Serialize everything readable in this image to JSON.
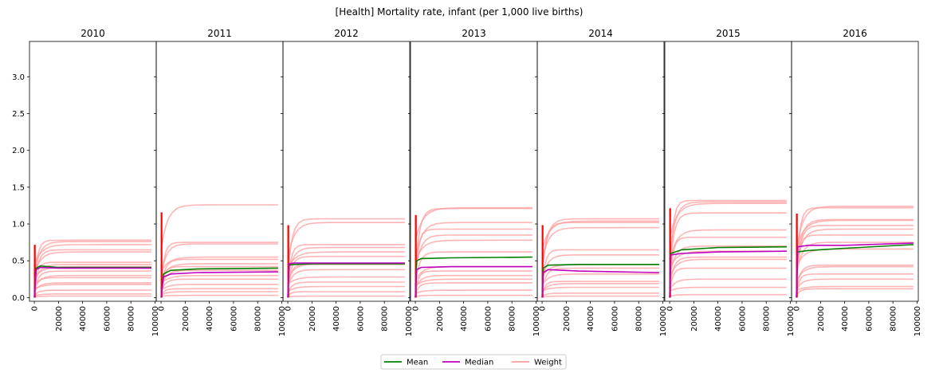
{
  "chart_data": {
    "type": "line",
    "title": "[Health] Mortality rate, infant (per 1,000 live births)",
    "xlabel": "",
    "ylabel": "",
    "panels": [
      "2010",
      "2011",
      "2012",
      "2013",
      "2014",
      "2015",
      "2016"
    ],
    "xlim": [
      -4000,
      101000
    ],
    "ylim": [
      -0.05,
      3.48
    ],
    "x_ticks": [
      0,
      20000,
      40000,
      60000,
      80000,
      100000
    ],
    "x_tick_labels": [
      "0",
      "20000",
      "40000",
      "60000",
      "80000",
      "100000"
    ],
    "y_ticks": [
      0.0,
      0.5,
      1.0,
      1.5,
      2.0,
      2.5,
      3.0
    ],
    "y_tick_labels": [
      "0.0",
      "0.5",
      "1.0",
      "1.5",
      "2.0",
      "2.5",
      "3.0"
    ],
    "shared_y": true,
    "x_end": 97000,
    "legend": {
      "position": "bottom-center",
      "entries": [
        {
          "label": "Mean",
          "color": "#008000"
        },
        {
          "label": "Median",
          "color": "#bf00bf"
        },
        {
          "label": "Weight",
          "color": "#ff9c9c"
        }
      ]
    },
    "colors": {
      "mean": "#008000",
      "median": "#bf00bf",
      "weight": "#ff9c9c",
      "spike": "#ff0000"
    },
    "series": [
      {
        "name": "Mean",
        "panel_values": [
          [
            [
              0,
              0.0
            ],
            [
              1500,
              0.4
            ],
            [
              5000,
              0.43
            ],
            [
              20000,
              0.41
            ],
            [
              97000,
              0.41
            ]
          ],
          [
            [
              0,
              0.0
            ],
            [
              2000,
              0.32
            ],
            [
              8000,
              0.37
            ],
            [
              30000,
              0.39
            ],
            [
              97000,
              0.4
            ]
          ],
          [
            [
              0,
              0.0
            ],
            [
              1000,
              0.44
            ],
            [
              5000,
              0.45
            ],
            [
              20000,
              0.46
            ],
            [
              97000,
              0.46
            ]
          ],
          [
            [
              0,
              0.0
            ],
            [
              1000,
              0.5
            ],
            [
              5000,
              0.53
            ],
            [
              30000,
              0.54
            ],
            [
              97000,
              0.55
            ]
          ],
          [
            [
              0,
              0.0
            ],
            [
              1000,
              0.4
            ],
            [
              5000,
              0.44
            ],
            [
              30000,
              0.45
            ],
            [
              97000,
              0.45
            ]
          ],
          [
            [
              0,
              0.0
            ],
            [
              1000,
              0.6
            ],
            [
              10000,
              0.65
            ],
            [
              40000,
              0.68
            ],
            [
              97000,
              0.69
            ]
          ],
          [
            [
              0,
              0.0
            ],
            [
              1000,
              0.62
            ],
            [
              10000,
              0.64
            ],
            [
              40000,
              0.67
            ],
            [
              97000,
              0.72
            ]
          ]
        ]
      },
      {
        "name": "Median",
        "panel_values": [
          [
            [
              0,
              0.0
            ],
            [
              1500,
              0.38
            ],
            [
              5000,
              0.41
            ],
            [
              20000,
              0.4
            ],
            [
              97000,
              0.4
            ]
          ],
          [
            [
              0,
              0.0
            ],
            [
              2000,
              0.28
            ],
            [
              8000,
              0.32
            ],
            [
              30000,
              0.34
            ],
            [
              97000,
              0.35
            ]
          ],
          [
            [
              0,
              0.0
            ],
            [
              1000,
              0.46
            ],
            [
              5000,
              0.47
            ],
            [
              20000,
              0.47
            ],
            [
              97000,
              0.47
            ]
          ],
          [
            [
              0,
              0.0
            ],
            [
              1000,
              0.38
            ],
            [
              5000,
              0.41
            ],
            [
              30000,
              0.42
            ],
            [
              97000,
              0.42
            ]
          ],
          [
            [
              0,
              0.0
            ],
            [
              1000,
              0.34
            ],
            [
              5000,
              0.38
            ],
            [
              30000,
              0.36
            ],
            [
              97000,
              0.34
            ]
          ],
          [
            [
              0,
              0.0
            ],
            [
              1000,
              0.58
            ],
            [
              10000,
              0.6
            ],
            [
              40000,
              0.62
            ],
            [
              97000,
              0.63
            ]
          ],
          [
            [
              0,
              0.0
            ],
            [
              1000,
              0.69
            ],
            [
              10000,
              0.71
            ],
            [
              40000,
              0.71
            ],
            [
              97000,
              0.74
            ]
          ]
        ]
      },
      {
        "name": "Weight",
        "panel_final_values": [
          [
            0.78,
            0.76,
            0.72,
            0.65,
            0.62,
            0.48,
            0.45,
            0.42,
            0.36,
            0.3,
            0.27,
            0.2,
            0.18,
            0.1,
            0.05,
            0.02
          ],
          [
            1.26,
            0.75,
            0.73,
            0.55,
            0.52,
            0.46,
            0.42,
            0.37,
            0.3,
            0.25,
            0.18,
            0.12,
            0.08,
            0.03
          ],
          [
            1.07,
            1.02,
            0.72,
            0.68,
            0.62,
            0.56,
            0.46,
            0.45,
            0.38,
            0.28,
            0.21,
            0.15,
            0.08,
            0.02
          ],
          [
            1.22,
            1.21,
            1.02,
            0.93,
            0.85,
            0.78,
            0.62,
            0.42,
            0.36,
            0.3,
            0.25,
            0.2,
            0.1,
            0.03
          ],
          [
            1.07,
            1.04,
            1.02,
            0.95,
            0.65,
            0.58,
            0.45,
            0.4,
            0.32,
            0.22,
            0.19,
            0.14,
            0.06,
            0.02
          ],
          [
            1.32,
            1.3,
            1.28,
            1.15,
            0.92,
            0.82,
            0.7,
            0.63,
            0.55,
            0.52,
            0.4,
            0.25,
            0.14,
            0.04
          ],
          [
            1.24,
            1.22,
            1.06,
            1.05,
            0.98,
            0.93,
            0.85,
            0.75,
            0.66,
            0.44,
            0.42,
            0.32,
            0.25,
            0.15,
            0.12
          ]
        ]
      }
    ]
  }
}
